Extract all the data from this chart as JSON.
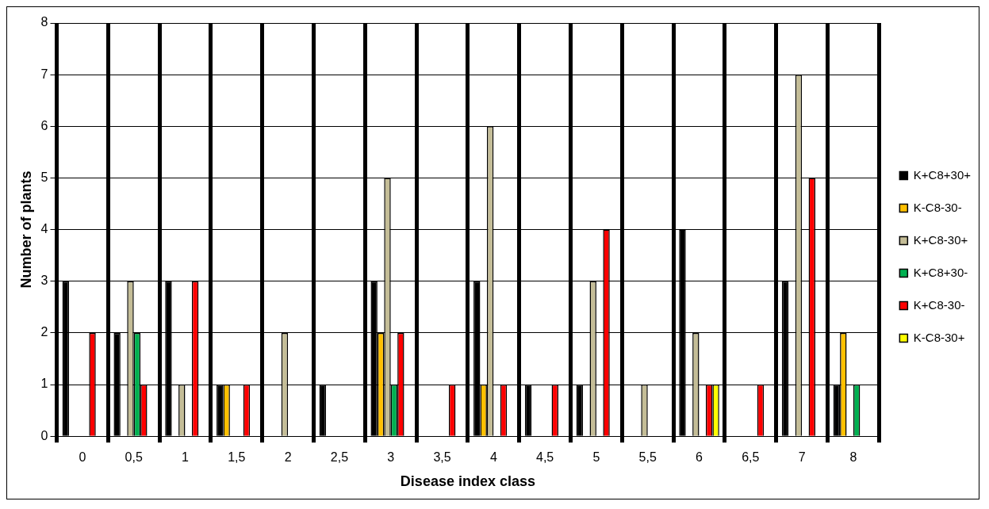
{
  "chart_data": {
    "type": "bar",
    "xlabel": "Disease index class",
    "ylabel": "Number of plants",
    "categories": [
      "0",
      "0,5",
      "1",
      "1,5",
      "2",
      "2,5",
      "3",
      "3,5",
      "4",
      "4,5",
      "5",
      "5,5",
      "6",
      "6,5",
      "7",
      "8"
    ],
    "series": [
      {
        "name": "K+C8+30+",
        "color": "#000000",
        "values": [
          3,
          2,
          3,
          1,
          0,
          1,
          3,
          0,
          3,
          1,
          1,
          0,
          4,
          0,
          3,
          1
        ]
      },
      {
        "name": "K-C8-30-",
        "color": "#ffc000",
        "values": [
          0,
          0,
          0,
          1,
          0,
          0,
          2,
          0,
          1,
          0,
          0,
          0,
          0,
          0,
          0,
          2
        ]
      },
      {
        "name": "K+C8-30+",
        "color": "#c4bd97",
        "values": [
          0,
          3,
          1,
          0,
          2,
          0,
          5,
          0,
          6,
          0,
          3,
          1,
          2,
          0,
          7,
          0
        ]
      },
      {
        "name": "K+C8+30-",
        "color": "#00b050",
        "values": [
          0,
          2,
          0,
          0,
          0,
          0,
          1,
          0,
          0,
          0,
          0,
          0,
          0,
          0,
          0,
          1
        ]
      },
      {
        "name": "K+C8-30-",
        "color": "#ff0000",
        "values": [
          2,
          1,
          3,
          1,
          0,
          0,
          2,
          1,
          1,
          1,
          4,
          0,
          1,
          1,
          5,
          0
        ]
      },
      {
        "name": "K-C8-30+",
        "color": "#ffff00",
        "values": [
          0,
          0,
          0,
          0,
          0,
          0,
          0,
          0,
          0,
          0,
          0,
          0,
          1,
          0,
          0,
          0
        ]
      }
    ],
    "ylim": [
      0,
      8
    ],
    "yticks": [
      0,
      1,
      2,
      3,
      4,
      5,
      6,
      7,
      8
    ],
    "grid": true,
    "legend": "right"
  }
}
